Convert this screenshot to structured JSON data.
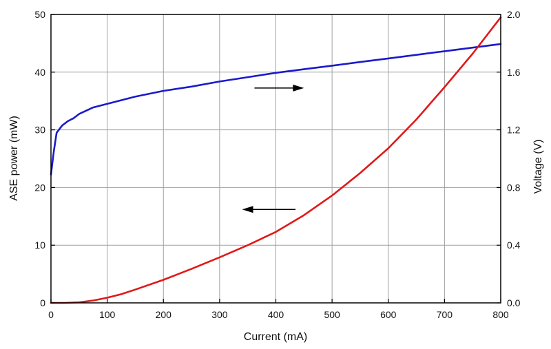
{
  "chart_data": {
    "type": "line",
    "title": "",
    "xlabel": "Current (mA)",
    "ylabel_left": "ASE power (mW)",
    "ylabel_right": "Voltage (V)",
    "xlim": [
      0,
      800
    ],
    "ylim_left": [
      0,
      50
    ],
    "ylim_right": [
      0,
      2.0
    ],
    "x_ticks": [
      "0",
      "100",
      "200",
      "300",
      "400",
      "500",
      "600",
      "700",
      "800"
    ],
    "y_left_ticks": [
      "0",
      "10",
      "20",
      "30",
      "40",
      "50"
    ],
    "y_right_ticks": [
      "0.0",
      "0.4",
      "0.8",
      "1.2",
      "1.6",
      "2.0"
    ],
    "grid": true,
    "series": [
      {
        "axis": "right",
        "color": "#1a1acc",
        "points": [
          [
            0,
            0.89
          ],
          [
            5,
            1.05
          ],
          [
            10,
            1.18
          ],
          [
            20,
            1.23
          ],
          [
            30,
            1.26
          ],
          [
            40,
            1.28
          ],
          [
            50,
            1.31
          ],
          [
            75,
            1.355
          ],
          [
            100,
            1.38
          ],
          [
            150,
            1.43
          ],
          [
            200,
            1.47
          ],
          [
            250,
            1.5
          ],
          [
            300,
            1.535
          ],
          [
            350,
            1.565
          ],
          [
            400,
            1.595
          ],
          [
            450,
            1.62
          ],
          [
            500,
            1.645
          ],
          [
            550,
            1.67
          ],
          [
            600,
            1.695
          ],
          [
            650,
            1.72
          ],
          [
            700,
            1.745
          ],
          [
            750,
            1.77
          ],
          [
            800,
            1.795
          ]
        ]
      },
      {
        "axis": "left",
        "color": "#e01818",
        "points": [
          [
            0,
            0
          ],
          [
            25,
            0
          ],
          [
            50,
            0.1
          ],
          [
            75,
            0.4
          ],
          [
            100,
            0.9
          ],
          [
            125,
            1.5
          ],
          [
            150,
            2.3
          ],
          [
            200,
            4.0
          ],
          [
            250,
            5.9
          ],
          [
            300,
            7.9
          ],
          [
            350,
            10.0
          ],
          [
            400,
            12.3
          ],
          [
            450,
            15.2
          ],
          [
            500,
            18.6
          ],
          [
            550,
            22.5
          ],
          [
            600,
            26.8
          ],
          [
            650,
            31.8
          ],
          [
            700,
            37.4
          ],
          [
            750,
            43.2
          ],
          [
            800,
            49.5
          ]
        ]
      }
    ],
    "annotations": [
      {
        "type": "arrow",
        "direction": "right",
        "from": [
          362,
          1.49
        ],
        "to": [
          450,
          1.49
        ],
        "axis": "right"
      },
      {
        "type": "arrow",
        "direction": "left",
        "from": [
          435,
          16.2
        ],
        "to": [
          340,
          16.2
        ],
        "axis": "left"
      }
    ]
  }
}
